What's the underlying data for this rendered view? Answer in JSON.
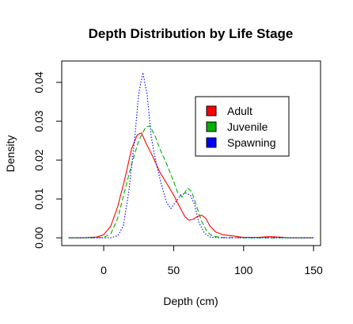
{
  "chart_data": {
    "type": "line",
    "title": "Depth Distribution by Life Stage",
    "xlabel": "Depth (cm)",
    "ylabel": "Density",
    "xlim": [
      -30,
      155
    ],
    "ylim": [
      -0.002,
      0.0455
    ],
    "x_ticks": [
      0,
      50,
      100,
      150
    ],
    "x_tick_labels": [
      "0",
      "50",
      "100",
      "150"
    ],
    "y_ticks": [
      0,
      0.01,
      0.02,
      0.03,
      0.04
    ],
    "y_tick_labels": [
      "0.00",
      "0.01",
      "0.02",
      "0.03",
      "0.04"
    ],
    "legend_position": "top-right",
    "grid": false,
    "series": [
      {
        "name": "Adult",
        "color": "#ff0000",
        "dash": "solid",
        "points": [
          [
            -25,
            0
          ],
          [
            -15,
            0
          ],
          [
            -5,
            0.0002
          ],
          [
            0,
            0.0008
          ],
          [
            5,
            0.003
          ],
          [
            10,
            0.008
          ],
          [
            15,
            0.015
          ],
          [
            20,
            0.023
          ],
          [
            24,
            0.0265
          ],
          [
            27,
            0.027
          ],
          [
            30,
            0.0245
          ],
          [
            35,
            0.021
          ],
          [
            40,
            0.017
          ],
          [
            45,
            0.014
          ],
          [
            50,
            0.011
          ],
          [
            55,
            0.0075
          ],
          [
            58,
            0.0055
          ],
          [
            61,
            0.0045
          ],
          [
            64,
            0.0048
          ],
          [
            67,
            0.0055
          ],
          [
            70,
            0.0058
          ],
          [
            73,
            0.005
          ],
          [
            76,
            0.003
          ],
          [
            80,
            0.0015
          ],
          [
            85,
            0.0008
          ],
          [
            92,
            0.0005
          ],
          [
            100,
            0.0001
          ],
          [
            110,
            0.0001
          ],
          [
            118,
            0.0003
          ],
          [
            125,
            0.0002
          ],
          [
            132,
            0
          ],
          [
            150,
            0
          ]
        ]
      },
      {
        "name": "Juvenile",
        "color": "#00b000",
        "dash": "dashed",
        "points": [
          [
            -25,
            0
          ],
          [
            -10,
            0
          ],
          [
            0,
            0.0001
          ],
          [
            5,
            0.001
          ],
          [
            10,
            0.005
          ],
          [
            15,
            0.012
          ],
          [
            20,
            0.019
          ],
          [
            25,
            0.025
          ],
          [
            30,
            0.0285
          ],
          [
            33,
            0.0288
          ],
          [
            37,
            0.026
          ],
          [
            40,
            0.023
          ],
          [
            45,
            0.019
          ],
          [
            50,
            0.0145
          ],
          [
            53,
            0.0115
          ],
          [
            56,
            0.0105
          ],
          [
            60,
            0.0128
          ],
          [
            63,
            0.0118
          ],
          [
            66,
            0.0085
          ],
          [
            70,
            0.0042
          ],
          [
            74,
            0.0015
          ],
          [
            78,
            0.0004
          ],
          [
            85,
            0.0001
          ],
          [
            100,
            0
          ],
          [
            150,
            0
          ]
        ]
      },
      {
        "name": "Spawning",
        "color": "#0000ff",
        "dash": "dotted",
        "points": [
          [
            -25,
            0
          ],
          [
            5,
            0
          ],
          [
            10,
            0.0005
          ],
          [
            14,
            0.003
          ],
          [
            18,
            0.012
          ],
          [
            22,
            0.025
          ],
          [
            25,
            0.037
          ],
          [
            28,
            0.0425
          ],
          [
            31,
            0.037
          ],
          [
            34,
            0.026
          ],
          [
            37,
            0.02
          ],
          [
            41,
            0.014
          ],
          [
            45,
            0.009
          ],
          [
            48,
            0.0075
          ],
          [
            51,
            0.009
          ],
          [
            55,
            0.011
          ],
          [
            59,
            0.0115
          ],
          [
            62,
            0.011
          ],
          [
            65,
            0.0085
          ],
          [
            68,
            0.004
          ],
          [
            72,
            0.0012
          ],
          [
            76,
            0.0002
          ],
          [
            82,
            0
          ],
          [
            150,
            0
          ]
        ]
      }
    ]
  }
}
